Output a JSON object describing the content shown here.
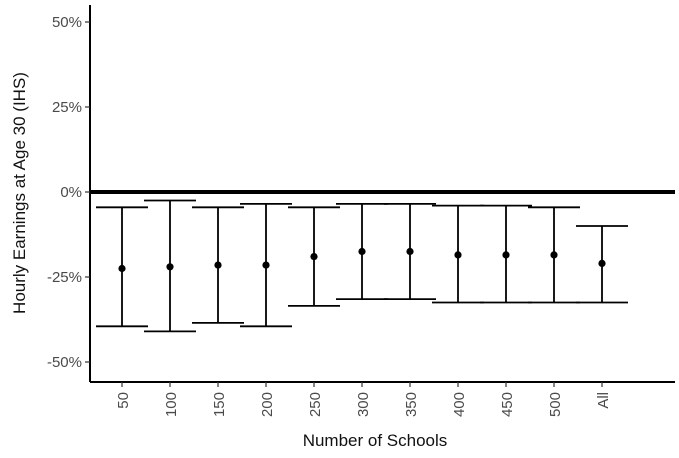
{
  "chart_data": {
    "type": "scatter",
    "subtype": "point-estimate-with-confidence-intervals",
    "title": "",
    "xlabel": "Number of Schools",
    "ylabel": "Hourly Earnings at Age 30 (IHS)",
    "categories": [
      "50",
      "100",
      "150",
      "200",
      "250",
      "300",
      "350",
      "400",
      "450",
      "500",
      "All"
    ],
    "estimates": [
      -22.5,
      -22,
      -21.5,
      -21.5,
      -19,
      -17.5,
      -17.5,
      -18.5,
      -18.5,
      -18.5,
      -21
    ],
    "ci_lower": [
      -39.5,
      -41,
      -38.5,
      -39.5,
      -33.5,
      -31.5,
      -31.5,
      -32.5,
      -32.5,
      -32.5,
      -32.5
    ],
    "ci_upper": [
      -4.5,
      -2.5,
      -4.5,
      -3.5,
      -4.5,
      -3.5,
      -3.5,
      -4,
      -4,
      -4.5,
      -10
    ],
    "ylim": [
      -55,
      52
    ],
    "yticks": [
      50,
      25,
      0,
      -25,
      -50
    ],
    "ytick_labels": [
      "50%",
      "25%",
      "0%",
      "-25%",
      "-50%"
    ],
    "reference_line": 0,
    "grid": false,
    "colors": {
      "marks": "#000000",
      "tick_text": "#4a4a4a"
    }
  }
}
